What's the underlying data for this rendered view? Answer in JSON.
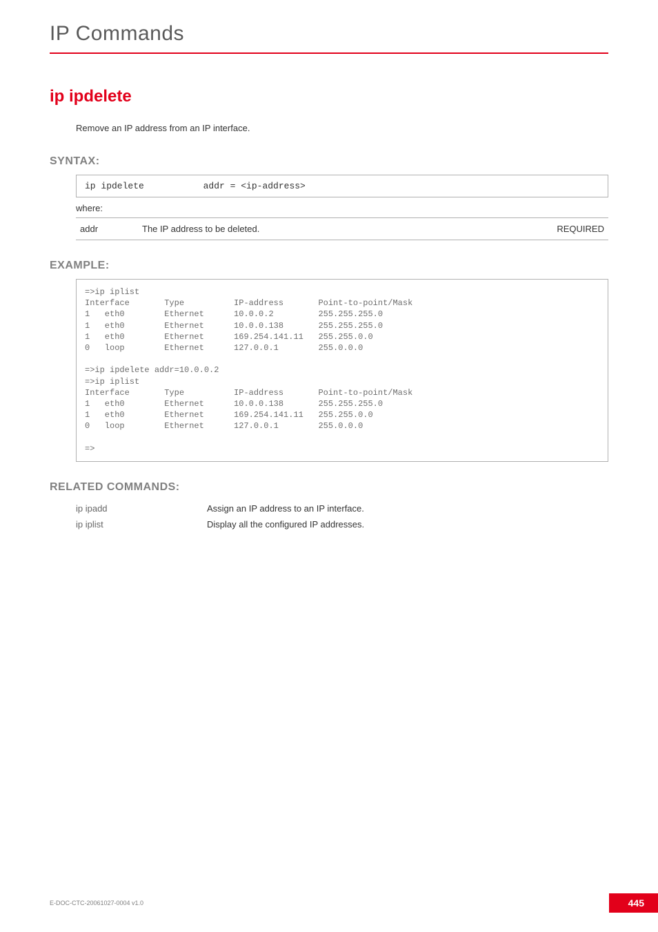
{
  "header": {
    "title": "IP Commands"
  },
  "command": {
    "name": "ip ipdelete",
    "description": "Remove an IP address from an IP interface."
  },
  "syntax": {
    "heading": "SYNTAX:",
    "line": "ip ipdelete           addr = <ip-address>",
    "where": "where:",
    "params": [
      {
        "name": "addr",
        "desc": "The IP address to be deleted.",
        "req": "REQUIRED"
      }
    ]
  },
  "example": {
    "heading": "EXAMPLE:",
    "text": "=>ip iplist\nInterface       Type          IP-address       Point-to-point/Mask\n1   eth0        Ethernet      10.0.0.2         255.255.255.0\n1   eth0        Ethernet      10.0.0.138       255.255.255.0\n1   eth0        Ethernet      169.254.141.11   255.255.0.0\n0   loop        Ethernet      127.0.0.1        255.0.0.0\n\n=>ip ipdelete addr=10.0.0.2\n=>ip iplist\nInterface       Type          IP-address       Point-to-point/Mask\n1   eth0        Ethernet      10.0.0.138       255.255.255.0\n1   eth0        Ethernet      169.254.141.11   255.255.0.0\n0   loop        Ethernet      127.0.0.1        255.0.0.0\n\n=>"
  },
  "related": {
    "heading": "RELATED COMMANDS:",
    "rows": [
      {
        "cmd": "ip ipadd",
        "desc": "Assign an IP address to an IP interface."
      },
      {
        "cmd": "ip iplist",
        "desc": "Display all the configured IP addresses."
      }
    ]
  },
  "footer": {
    "doc": "E-DOC-CTC-20061027-0004 v1.0",
    "page": "445"
  }
}
